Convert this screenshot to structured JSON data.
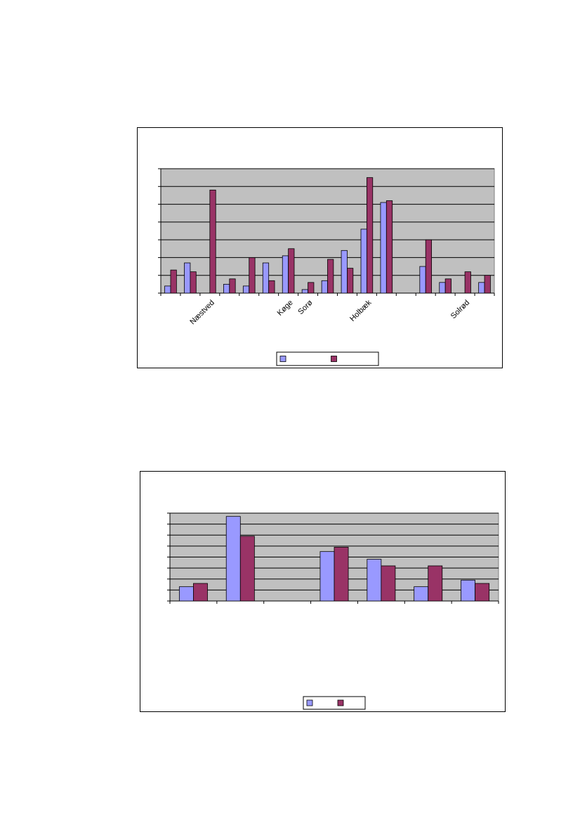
{
  "chart_data": [
    {
      "type": "bar",
      "title": "",
      "xlabel": "",
      "ylabel": "",
      "ylim": [
        0,
        7
      ],
      "grid": true,
      "plot_background": "#c0c0c0",
      "legend_position": "bottom",
      "categories": [
        "",
        "",
        "Næstved",
        "",
        "",
        "",
        "Køge",
        "Sorø",
        "",
        "",
        "Holbæk",
        "",
        "",
        "",
        "",
        "Solrød",
        ""
      ],
      "series": [
        {
          "color": "#9999ff",
          "values": [
            0.4,
            1.7,
            0,
            0.5,
            0.4,
            1.7,
            2.1,
            0.2,
            0.7,
            2.4,
            3.6,
            5.1,
            0,
            1.5,
            0.6,
            0,
            0.6
          ]
        },
        {
          "color": "#993366",
          "values": [
            1.3,
            1.2,
            5.8,
            0.8,
            2.0,
            0.7,
            2.5,
            0.6,
            1.9,
            1.4,
            6.5,
            5.2,
            0,
            3.0,
            0.8,
            1.2,
            1.0
          ]
        }
      ]
    },
    {
      "type": "bar",
      "title": "",
      "xlabel": "",
      "ylabel": "",
      "ylim": [
        0,
        8
      ],
      "grid": true,
      "plot_background": "#c0c0c0",
      "legend_position": "bottom",
      "categories": [
        "",
        "",
        "",
        "",
        "",
        "",
        ""
      ],
      "series": [
        {
          "color": "#9999ff",
          "values": [
            1.3,
            7.7,
            0,
            4.5,
            3.8,
            1.3,
            1.9
          ]
        },
        {
          "color": "#993366",
          "values": [
            1.6,
            5.9,
            0,
            4.9,
            3.2,
            3.2,
            1.6
          ]
        }
      ]
    }
  ]
}
